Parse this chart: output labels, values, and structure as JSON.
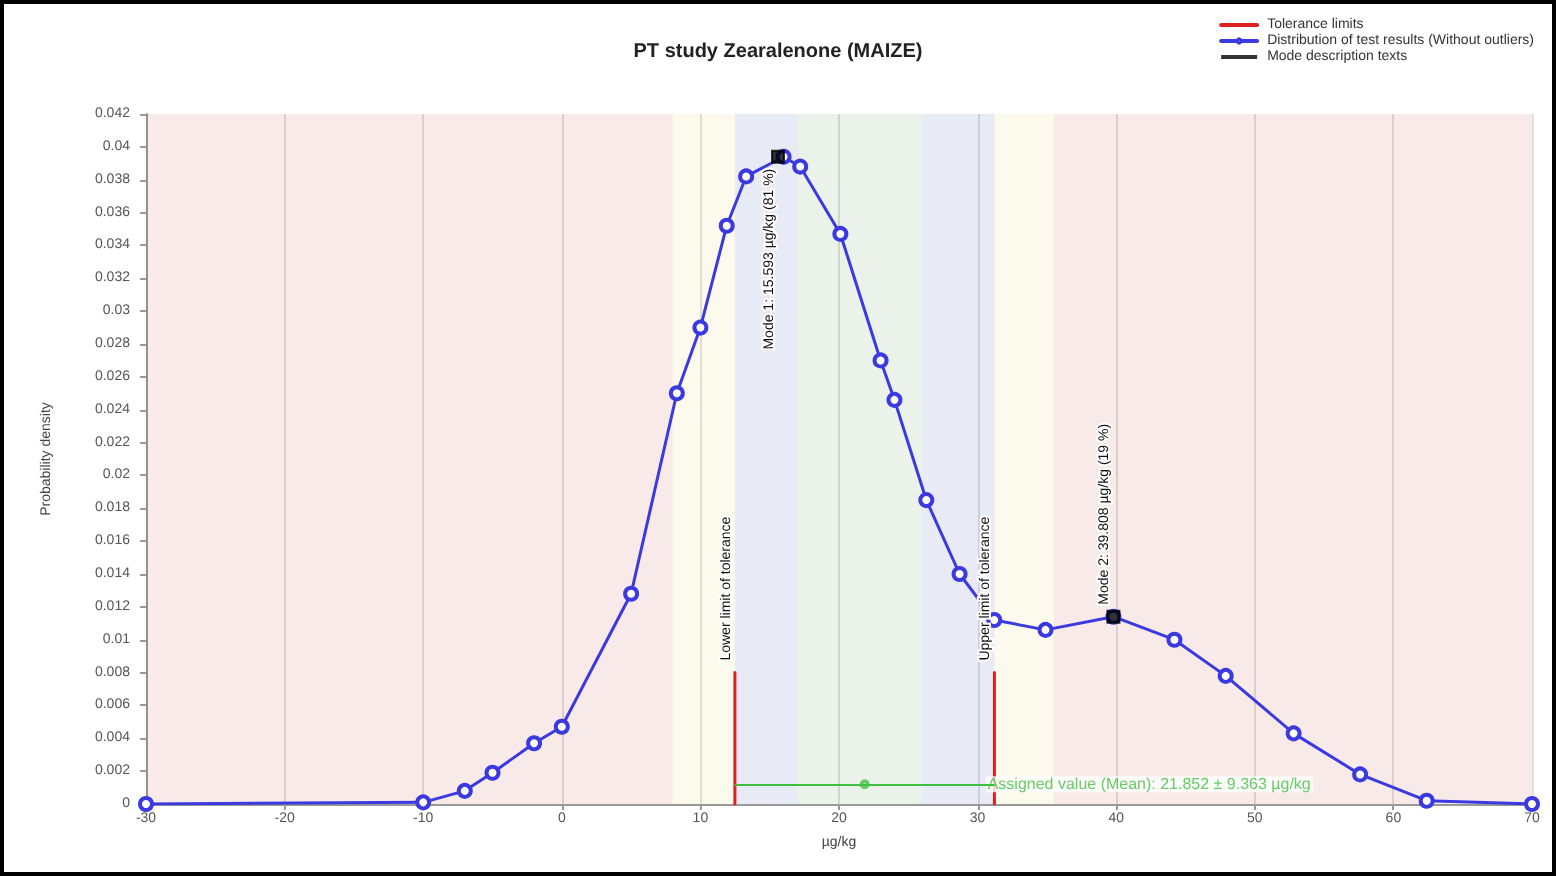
{
  "chart_data": {
    "type": "line",
    "title": "PT study Zearalenone (MAIZE)",
    "xlabel": "µg/kg",
    "ylabel": "Probability density",
    "xlim": [
      -30,
      70
    ],
    "xticks": [
      -30,
      -20,
      -10,
      0,
      10,
      20,
      30,
      40,
      50,
      60,
      70
    ],
    "ylim": [
      0,
      0.042
    ],
    "yticks": [
      0,
      0.002,
      0.004,
      0.006,
      0.008,
      0.01,
      0.012,
      0.014,
      0.016,
      0.018,
      0.02,
      0.022,
      0.024,
      0.026,
      0.028,
      0.03,
      0.032,
      0.034,
      0.036,
      0.038,
      0.04,
      0.042
    ],
    "grid": "x",
    "legend": "top right",
    "marker": "circle",
    "series": [
      {
        "name": "Tolerance limits",
        "color": "#e02020",
        "x": [
          12.489,
          12.489,
          null,
          31.215,
          31.215
        ],
        "values": [
          0,
          0.008,
          null,
          0,
          0.008
        ],
        "marker": "none"
      },
      {
        "name": "Distribution of test results (Without outliers)",
        "color": "#3a3ae0",
        "x": [
          -30,
          -10,
          -7,
          -5,
          -2,
          0,
          5,
          8.3,
          10,
          11.9,
          13.3,
          16,
          17.2,
          20.1,
          23,
          24,
          26.3,
          28.7,
          31.2,
          34.9,
          39.8,
          44.2,
          47.9,
          52.8,
          57.6,
          62.4,
          70
        ],
        "values": [
          0,
          0.0001,
          0.0008,
          0.0019,
          0.0037,
          0.0047,
          0.0128,
          0.025,
          0.029,
          0.0352,
          0.0382,
          0.0394,
          0.0388,
          0.0347,
          0.027,
          0.0246,
          0.0185,
          0.014,
          0.0112,
          0.0106,
          0.0114,
          0.01,
          0.0078,
          0.0043,
          0.0018,
          0.0002,
          0
        ]
      },
      {
        "name": "Mode description texts",
        "color": "#000000",
        "type": "scatter",
        "marker": "square",
        "x": [
          15.6,
          39.8
        ],
        "values": [
          0.0394,
          0.0114
        ]
      },
      {
        "name": "Assigned value (Mean): 21.852 ± 9.363 µg/kg",
        "color": "#40c040",
        "type": "scatter",
        "x": [
          21.852
        ],
        "values": [
          0.0012
        ],
        "xerrors": [
          9.363
        ]
      }
    ],
    "bands": [
      {
        "axis": "x",
        "from": -30,
        "to": 8,
        "color": "#c03030"
      },
      {
        "axis": "x",
        "from": 8,
        "to": 12.489,
        "color": "#d8d040"
      },
      {
        "axis": "x",
        "from": 12.489,
        "to": 17,
        "color": "#2030a0"
      },
      {
        "axis": "x",
        "from": 17,
        "to": 26,
        "color": "#308030"
      },
      {
        "axis": "x",
        "from": 26,
        "to": 31.215,
        "color": "#2030a0"
      },
      {
        "axis": "x",
        "from": 31.215,
        "to": 35.5,
        "color": "#d8d040"
      },
      {
        "axis": "x",
        "from": 35.5,
        "to": 70,
        "color": "#c03030"
      }
    ],
    "annotations": [
      {
        "text": "Mode 1: 15.593 µg/kg (81 %)",
        "x": 15.6,
        "y": 0.0394
      },
      {
        "text": "Mode 2: 39.808 µg/kg (19 %)",
        "x": 39.8,
        "y": 0.0114
      },
      {
        "text": "Lower limit of tolerance",
        "x": 12.489,
        "y": 0.008
      },
      {
        "text": "Upper limit of tolerance",
        "x": 31.215,
        "y": 0.008
      }
    ]
  }
}
